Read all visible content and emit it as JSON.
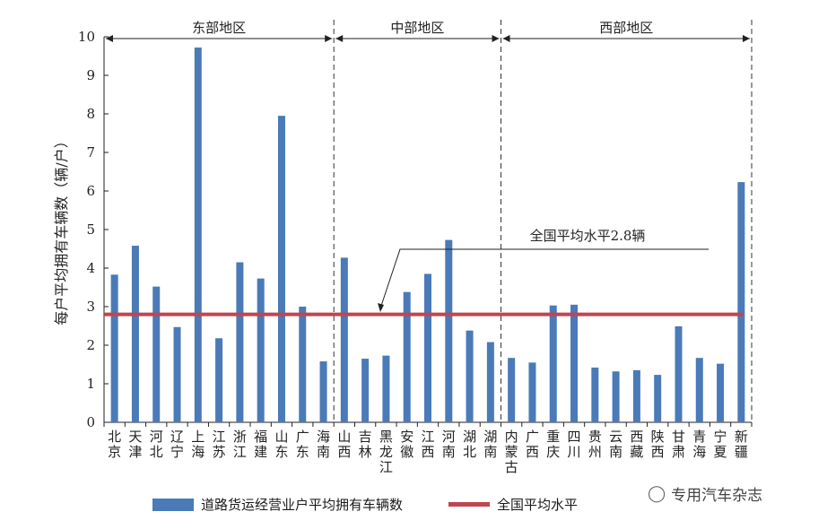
{
  "chart_data": {
    "type": "bar",
    "ylabel": "每户平均拥有车辆数（辆/户）",
    "ylim": [
      0,
      10
    ],
    "yticks": [
      "0",
      "1",
      "2",
      "3",
      "4",
      "5",
      "6",
      "7",
      "8",
      "9",
      "10"
    ],
    "categories": [
      [
        "北",
        "京"
      ],
      [
        "天",
        "津"
      ],
      [
        "河",
        "北"
      ],
      [
        "辽",
        "宁"
      ],
      [
        "上",
        "海"
      ],
      [
        "江",
        "苏"
      ],
      [
        "浙",
        "江"
      ],
      [
        "福",
        "建"
      ],
      [
        "山",
        "东"
      ],
      [
        "广",
        "东"
      ],
      [
        "海",
        "南"
      ],
      [
        "山",
        "西"
      ],
      [
        "吉",
        "林"
      ],
      [
        "黑",
        "龙",
        "江"
      ],
      [
        "安",
        "徽"
      ],
      [
        "江",
        "西"
      ],
      [
        "河",
        "南"
      ],
      [
        "湖",
        "北"
      ],
      [
        "湖",
        "南"
      ],
      [
        "内",
        "蒙",
        "古"
      ],
      [
        "广",
        "西"
      ],
      [
        "重",
        "庆"
      ],
      [
        "四",
        "川"
      ],
      [
        "贵",
        "州"
      ],
      [
        "云",
        "南"
      ],
      [
        "西",
        "藏"
      ],
      [
        "陕",
        "西"
      ],
      [
        "甘",
        "肃"
      ],
      [
        "青",
        "海"
      ],
      [
        "宁",
        "夏"
      ],
      [
        "新",
        "疆"
      ]
    ],
    "series": [
      {
        "name": "道路货运经营业户平均拥有车辆数",
        "color": "#4a7ab8",
        "values": [
          3.83,
          4.58,
          3.52,
          2.47,
          9.72,
          2.18,
          4.15,
          3.73,
          7.95,
          3.0,
          1.58,
          4.27,
          1.65,
          1.73,
          3.38,
          3.85,
          4.73,
          2.38,
          2.08,
          1.67,
          1.55,
          3.03,
          3.05,
          1.42,
          1.32,
          1.35,
          1.23,
          2.49,
          1.67,
          1.52,
          6.23
        ]
      }
    ],
    "reference_line": {
      "name": "全国平均水平",
      "value": 2.8,
      "color": "#c0454f",
      "annotation": "全国平均水平2.8辆"
    },
    "regions": [
      {
        "label": "东部地区",
        "start": 0,
        "end": 10
      },
      {
        "label": "中部地区",
        "start": 11,
        "end": 18
      },
      {
        "label": "西部地区",
        "start": 19,
        "end": 30
      }
    ]
  },
  "legend": {
    "bar_label": "道路货运经营业户平均拥有车辆数",
    "line_label": "全国平均水平"
  },
  "watermark": {
    "icon": "wechat-icon",
    "text": "专用汽车杂志"
  }
}
